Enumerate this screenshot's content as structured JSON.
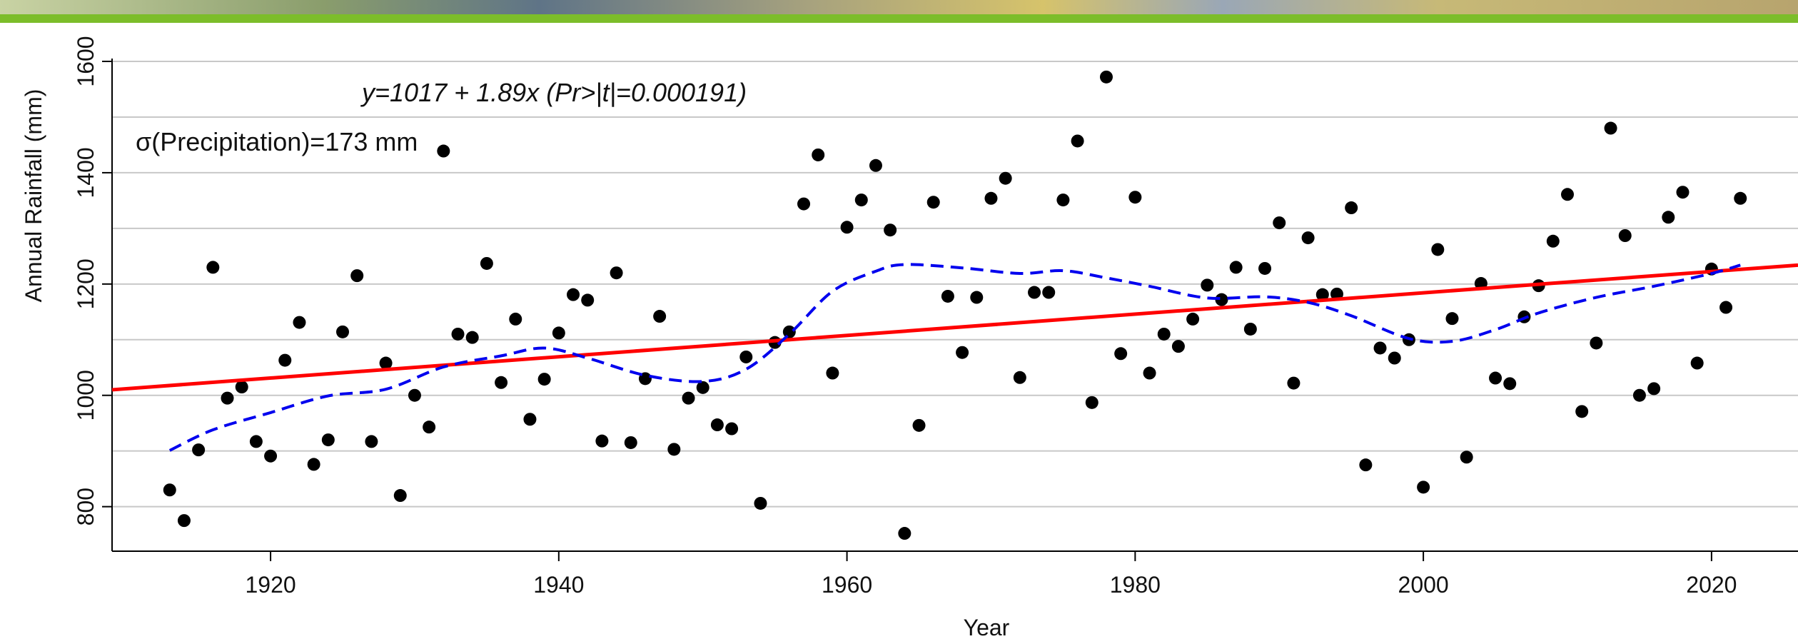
{
  "chart_data": {
    "type": "scatter",
    "xlabel": "Year",
    "ylabel": "Annual Rainfall (mm)",
    "xlim": [
      1909,
      2026
    ],
    "ylim": [
      720,
      1600
    ],
    "x_ticks": [
      1920,
      1940,
      1960,
      1980,
      2000,
      2020
    ],
    "y_ticks": [
      800,
      1000,
      1200,
      1400,
      1600
    ],
    "x_tick_labels": [
      "1920",
      "1940",
      "1960",
      "1980",
      "2000",
      "2020"
    ],
    "y_tick_labels": [
      "800",
      "1000",
      "1200",
      "1400",
      "1600"
    ],
    "grid": "horizontal",
    "annotations": {
      "equation": "y=1017 + 1.89x  (Pr>|t|=0.000191)",
      "sigma": "σ(Precipitation)=173 mm"
    },
    "trend_line": {
      "color": "#ff0000",
      "points": [
        [
          1909,
          1010
        ],
        [
          2026,
          1234
        ]
      ]
    },
    "smooth_line": {
      "color": "#0000ee",
      "points": [
        [
          1913,
          901
        ],
        [
          1916,
          938
        ],
        [
          1920,
          969
        ],
        [
          1924,
          999
        ],
        [
          1928,
          1011
        ],
        [
          1932,
          1051
        ],
        [
          1936,
          1071
        ],
        [
          1939,
          1085
        ],
        [
          1942,
          1067
        ],
        [
          1946,
          1036
        ],
        [
          1950,
          1025
        ],
        [
          1953,
          1047
        ],
        [
          1956,
          1110
        ],
        [
          1959,
          1187
        ],
        [
          1962,
          1223
        ],
        [
          1964,
          1235
        ],
        [
          1968,
          1229
        ],
        [
          1972,
          1219
        ],
        [
          1975,
          1224
        ],
        [
          1978,
          1211
        ],
        [
          1981,
          1196
        ],
        [
          1985,
          1175
        ],
        [
          1989,
          1177
        ],
        [
          1992,
          1167
        ],
        [
          1995,
          1143
        ],
        [
          1999,
          1102
        ],
        [
          2002,
          1097
        ],
        [
          2005,
          1118
        ],
        [
          2008,
          1148
        ],
        [
          2012,
          1176
        ],
        [
          2016,
          1196
        ],
        [
          2020,
          1219
        ],
        [
          2022,
          1234
        ]
      ]
    },
    "points": [
      [
        1913,
        830
      ],
      [
        1914,
        775
      ],
      [
        1915,
        902
      ],
      [
        1916,
        1230
      ],
      [
        1917,
        995
      ],
      [
        1918,
        1015
      ],
      [
        1919,
        917
      ],
      [
        1920,
        891
      ],
      [
        1921,
        1063
      ],
      [
        1922,
        1131
      ],
      [
        1923,
        876
      ],
      [
        1924,
        920
      ],
      [
        1925,
        1114
      ],
      [
        1926,
        1215
      ],
      [
        1927,
        917
      ],
      [
        1928,
        1058
      ],
      [
        1929,
        820
      ],
      [
        1930,
        1000
      ],
      [
        1931,
        943
      ],
      [
        1932,
        1439
      ],
      [
        1933,
        1110
      ],
      [
        1934,
        1104
      ],
      [
        1935,
        1237
      ],
      [
        1936,
        1023
      ],
      [
        1937,
        1137
      ],
      [
        1938,
        957
      ],
      [
        1939,
        1029
      ],
      [
        1940,
        1112
      ],
      [
        1941,
        1181
      ],
      [
        1942,
        1171
      ],
      [
        1943,
        918
      ],
      [
        1944,
        1220
      ],
      [
        1945,
        915
      ],
      [
        1946,
        1030
      ],
      [
        1947,
        1142
      ],
      [
        1948,
        903
      ],
      [
        1949,
        995
      ],
      [
        1950,
        1014
      ],
      [
        1951,
        947
      ],
      [
        1952,
        940
      ],
      [
        1953,
        1069
      ],
      [
        1954,
        806
      ],
      [
        1955,
        1095
      ],
      [
        1956,
        1114
      ],
      [
        1957,
        1344
      ],
      [
        1958,
        1432
      ],
      [
        1959,
        1040
      ],
      [
        1960,
        1302
      ],
      [
        1961,
        1351
      ],
      [
        1962,
        1413
      ],
      [
        1963,
        1297
      ],
      [
        1964,
        752
      ],
      [
        1965,
        946
      ],
      [
        1966,
        1347
      ],
      [
        1967,
        1178
      ],
      [
        1968,
        1077
      ],
      [
        1969,
        1176
      ],
      [
        1970,
        1354
      ],
      [
        1971,
        1390
      ],
      [
        1972,
        1032
      ],
      [
        1973,
        1185
      ],
      [
        1974,
        1185
      ],
      [
        1975,
        1351
      ],
      [
        1976,
        1457
      ],
      [
        1977,
        987
      ],
      [
        1978,
        1572
      ],
      [
        1979,
        1075
      ],
      [
        1980,
        1356
      ],
      [
        1981,
        1040
      ],
      [
        1982,
        1110
      ],
      [
        1983,
        1088
      ],
      [
        1984,
        1137
      ],
      [
        1985,
        1198
      ],
      [
        1986,
        1172
      ],
      [
        1987,
        1230
      ],
      [
        1988,
        1119
      ],
      [
        1989,
        1228
      ],
      [
        1990,
        1310
      ],
      [
        1991,
        1022
      ],
      [
        1992,
        1283
      ],
      [
        1993,
        1181
      ],
      [
        1994,
        1182
      ],
      [
        1995,
        1337
      ],
      [
        1996,
        875
      ],
      [
        1997,
        1085
      ],
      [
        1998,
        1067
      ],
      [
        1999,
        1100
      ],
      [
        2000,
        835
      ],
      [
        2001,
        1262
      ],
      [
        2002,
        1138
      ],
      [
        2003,
        889
      ],
      [
        2004,
        1201
      ],
      [
        2005,
        1031
      ],
      [
        2006,
        1021
      ],
      [
        2007,
        1141
      ],
      [
        2008,
        1197
      ],
      [
        2009,
        1277
      ],
      [
        2010,
        1361
      ],
      [
        2011,
        971
      ],
      [
        2012,
        1094
      ],
      [
        2013,
        1480
      ],
      [
        2014,
        1287
      ],
      [
        2015,
        1000
      ],
      [
        2016,
        1012
      ],
      [
        2017,
        1320
      ],
      [
        2018,
        1365
      ],
      [
        2019,
        1058
      ],
      [
        2020,
        1227
      ],
      [
        2021,
        1158
      ],
      [
        2022,
        1354
      ]
    ]
  }
}
